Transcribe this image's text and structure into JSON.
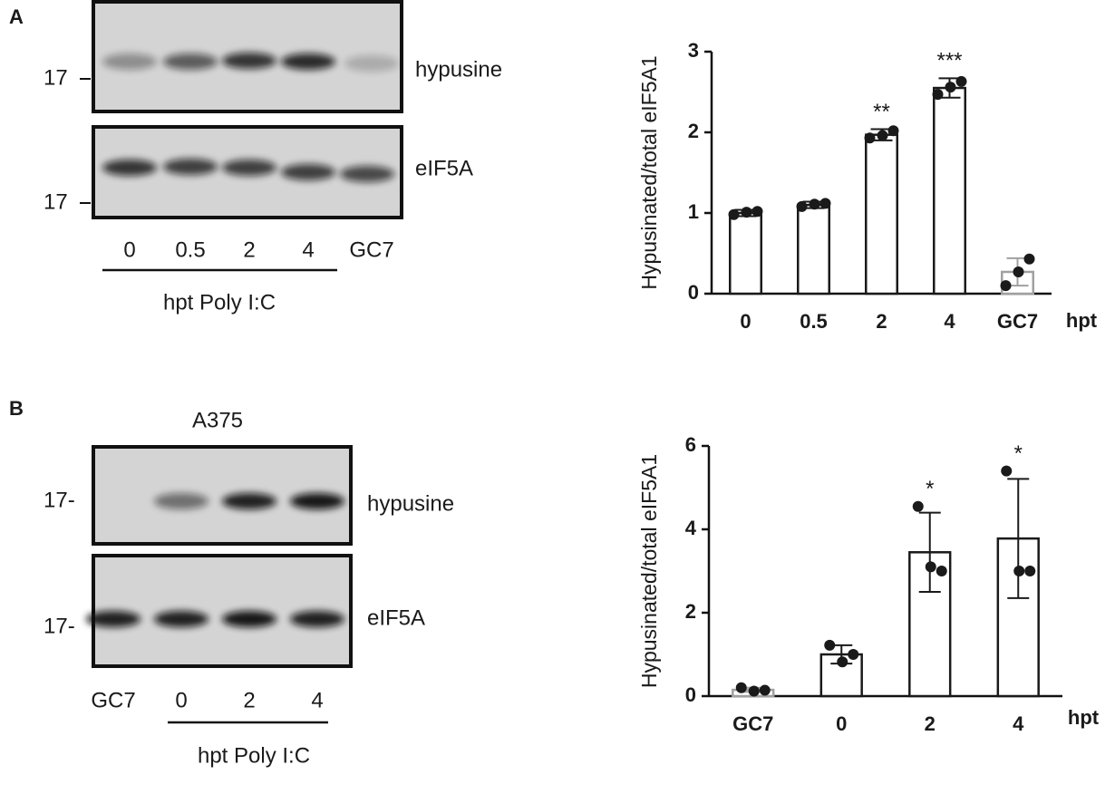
{
  "panel_labels": [
    "A",
    "B"
  ],
  "blots": [
    {
      "markers": [
        "17",
        "17"
      ],
      "bands": [
        "hypusine",
        "eIF5A"
      ],
      "lanes": [
        "0",
        "0.5",
        "2",
        "4",
        "GC7"
      ],
      "caption": "hpt Poly I:C"
    },
    {
      "title": "A375",
      "markers": [
        "17-",
        "17-"
      ],
      "bands": [
        "hypusine",
        "eIF5A"
      ],
      "lanes": [
        "GC7",
        "0",
        "2",
        "4"
      ],
      "caption": "hpt Poly I:C"
    }
  ],
  "chart_data": [
    {
      "type": "bar",
      "ylabel": "Hypusinated/total eIF5A1",
      "xlabel": "hpt",
      "categories": [
        "0",
        "0.5",
        "2",
        "4",
        "GC7"
      ],
      "values": [
        1.0,
        1.1,
        1.97,
        2.55,
        0.27
      ],
      "errors": [
        0.04,
        0.04,
        0.07,
        0.12,
        0.17
      ],
      "points": [
        [
          0.98,
          1.01,
          1.02
        ],
        [
          1.08,
          1.11,
          1.12
        ],
        [
          1.93,
          1.96,
          2.02
        ],
        [
          2.47,
          2.56,
          2.63
        ],
        [
          0.1,
          0.27,
          0.43
        ]
      ],
      "significance": [
        null,
        null,
        "**",
        "***",
        null
      ],
      "colors": [
        "#1a1a1a",
        "#1a1a1a",
        "#1a1a1a",
        "#1a1a1a",
        "#a0a0a0"
      ],
      "ylim": [
        0,
        3
      ],
      "yticks": [
        0,
        1,
        2,
        3
      ]
    },
    {
      "type": "bar",
      "ylabel": "Hypusinated/total eIF5A1",
      "xlabel": "hpt",
      "categories": [
        "GC7",
        "0",
        "2",
        "4"
      ],
      "values": [
        0.15,
        1.0,
        3.45,
        3.78
      ],
      "errors": [
        0.05,
        0.22,
        0.95,
        1.43
      ],
      "points": [
        [
          0.2,
          0.12,
          0.14
        ],
        [
          1.22,
          0.82,
          1.0
        ],
        [
          4.55,
          3.1,
          3.0
        ],
        [
          5.4,
          3.0,
          3.0
        ]
      ],
      "significance": [
        null,
        null,
        "*",
        "*"
      ],
      "colors": [
        "#a0a0a0",
        "#1a1a1a",
        "#1a1a1a",
        "#1a1a1a"
      ],
      "ylim": [
        0,
        6
      ],
      "yticks": [
        0,
        2,
        4,
        6
      ]
    }
  ]
}
